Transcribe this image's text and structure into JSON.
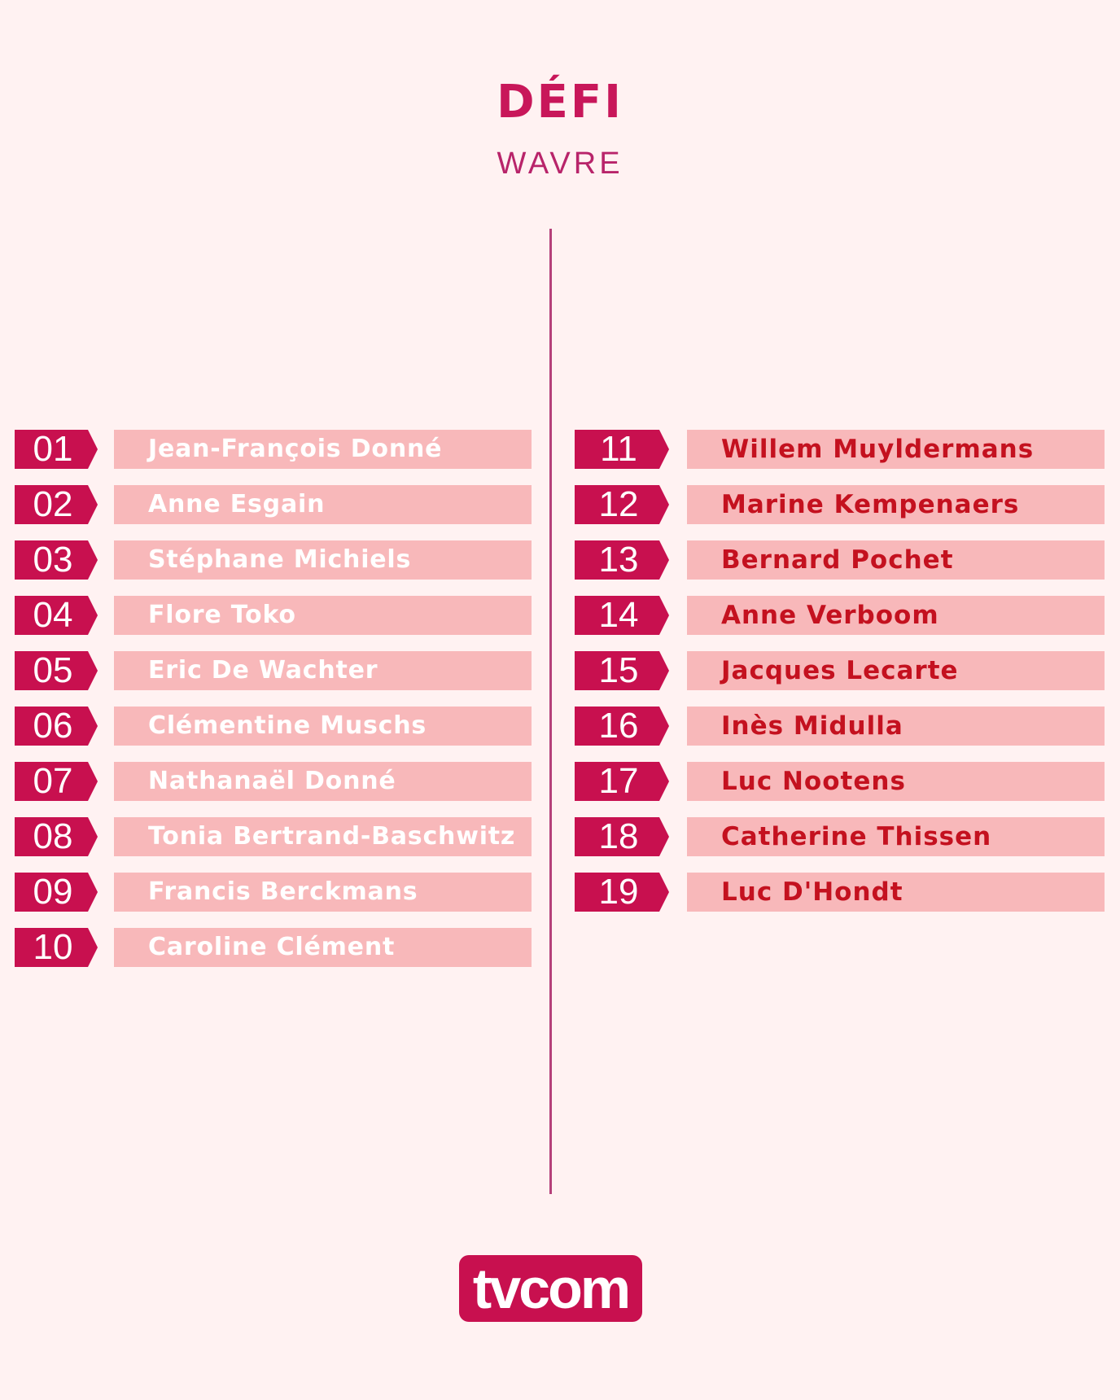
{
  "header": {
    "title": "DÉFI",
    "subtitle": "WAVRE"
  },
  "candidates_left": [
    {
      "number": "01",
      "name": "Jean-François Donné"
    },
    {
      "number": "02",
      "name": "Anne Esgain"
    },
    {
      "number": "03",
      "name": "Stéphane Michiels"
    },
    {
      "number": "04",
      "name": "Flore Toko"
    },
    {
      "number": "05",
      "name": "Eric De Wachter"
    },
    {
      "number": "06",
      "name": "Clémentine Muschs"
    },
    {
      "number": "07",
      "name": "Nathanaël Donné"
    },
    {
      "number": "08",
      "name": "Tonia Bertrand-Baschwitz"
    },
    {
      "number": "09",
      "name": "Francis Berckmans"
    },
    {
      "number": "10",
      "name": "Caroline Clément"
    }
  ],
  "candidates_right": [
    {
      "number": "11",
      "name": "Willem Muyldermans"
    },
    {
      "number": "12",
      "name": "Marine Kempenaers"
    },
    {
      "number": "13",
      "name": "Bernard Pochet"
    },
    {
      "number": "14",
      "name": "Anne Verboom"
    },
    {
      "number": "15",
      "name": "Jacques Lecarte"
    },
    {
      "number": "16",
      "name": "Inès Midulla"
    },
    {
      "number": "17",
      "name": "Luc Nootens"
    },
    {
      "number": "18",
      "name": "Catherine Thissen"
    },
    {
      "number": "19",
      "name": "Luc D'Hondt"
    }
  ],
  "logo": {
    "text": "tvcom"
  },
  "colors": {
    "background": "#fff2f2",
    "accent": "#c8104f",
    "name_bar": "#f8b8ba",
    "right_name_text": "#c4111f"
  }
}
